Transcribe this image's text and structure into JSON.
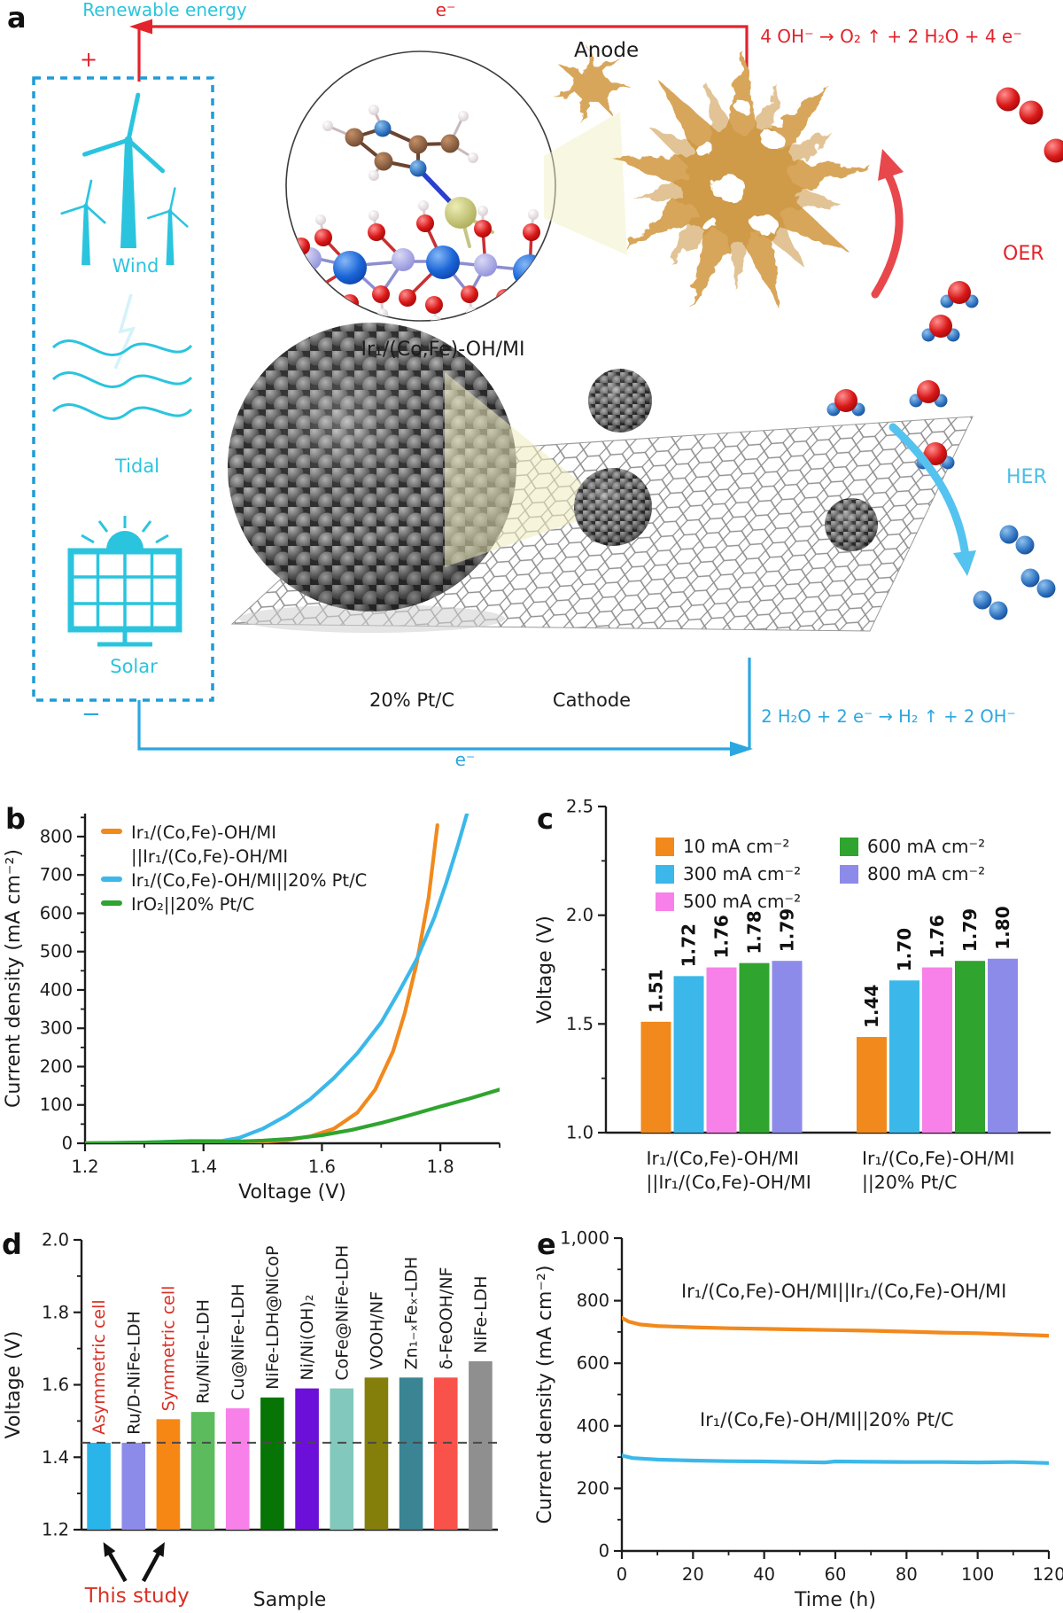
{
  "panel_a": {
    "label": "a",
    "renewable_energy": "Renewable energy",
    "electron_top": "e⁻",
    "plus_sign": "+",
    "minus_sign": "−",
    "wind_label": "Wind",
    "tidal_label": "Tidal",
    "solar_label": "Solar",
    "anode_label": "Anode",
    "anode_reaction": "4 OH⁻ → O₂ ↑ + 2 H₂O + 4 e⁻",
    "oer_label": "OER",
    "catalyst_label": "Ir₁/(Co,Fe)-OH/MI",
    "cathode_catalyst_label": "20% Pt/C",
    "cathode_label": "Cathode",
    "cathode_reaction": "2 H₂O + 2 e⁻ → H₂ ↑ + 2 OH⁻",
    "her_label": "HER",
    "electron_bottom": "e⁻"
  },
  "panel_labels": {
    "b": "b",
    "c": "c",
    "d": "d",
    "e": "e"
  },
  "colors": {
    "cyan": "#2BC4DE",
    "red": "#E3232B",
    "wire_blue": "#2BA7E0",
    "box_blue": "#1E9CD7",
    "arrow_red": "#E8474C",
    "arrow_blue": "#54C3EF",
    "her_blue": "#4BBEE8",
    "study_red": "#D93025",
    "orange": "#F1891D",
    "sky": "#3BB8E9",
    "green": "#2FA42F",
    "magenta": "#F781E8",
    "periwinkle": "#8D8BEA",
    "tan": "#D8A65A",
    "text": "#1C1C1C"
  },
  "chart_data": [
    {
      "id": "b",
      "type": "line",
      "xlabel": "Voltage (V)",
      "ylabel": "Current density (mA cm⁻²)",
      "xlim": [
        1.2,
        1.9
      ],
      "ylim": [
        0,
        860
      ],
      "xticks": [
        1.2,
        1.4,
        1.6,
        1.8
      ],
      "xtick_labels": [
        "1.2",
        "1.4",
        "1.6",
        "1.8"
      ],
      "xminor": [
        1.3,
        1.5,
        1.7,
        1.9
      ],
      "yticks": [
        0,
        100,
        200,
        300,
        400,
        500,
        600,
        700,
        800
      ],
      "ytick_labels": [
        "0",
        "100",
        "200",
        "300",
        "400",
        "500",
        "600",
        "700",
        "800"
      ],
      "yminor": [
        50,
        150,
        250,
        350,
        450,
        550,
        650,
        750,
        850
      ],
      "legend_position": "top-left",
      "series": [
        {
          "name": "Ir₁/(Co,Fe)-OH/MI",
          "name2": "||Ir₁/(Co,Fe)-OH/MI",
          "color": "#F1891D",
          "points": [
            [
              1.2,
              0
            ],
            [
              1.3,
              0
            ],
            [
              1.4,
              1
            ],
            [
              1.45,
              2
            ],
            [
              1.5,
              4
            ],
            [
              1.54,
              8
            ],
            [
              1.58,
              18
            ],
            [
              1.62,
              38
            ],
            [
              1.66,
              80
            ],
            [
              1.69,
              140
            ],
            [
              1.72,
              240
            ],
            [
              1.74,
              340
            ],
            [
              1.76,
              470
            ],
            [
              1.78,
              640
            ],
            [
              1.795,
              830
            ]
          ]
        },
        {
          "name": "Ir₁/(Co,Fe)-OH/MI||20% Pt/C",
          "color": "#3BB8E9",
          "points": [
            [
              1.2,
              0
            ],
            [
              1.3,
              2
            ],
            [
              1.38,
              6
            ],
            [
              1.43,
              6
            ],
            [
              1.46,
              14
            ],
            [
              1.5,
              38
            ],
            [
              1.54,
              72
            ],
            [
              1.58,
              115
            ],
            [
              1.62,
              170
            ],
            [
              1.66,
              235
            ],
            [
              1.7,
              315
            ],
            [
              1.73,
              395
            ],
            [
              1.76,
              480
            ],
            [
              1.79,
              590
            ],
            [
              1.81,
              680
            ],
            [
              1.83,
              780
            ],
            [
              1.845,
              860
            ]
          ]
        },
        {
          "name": "IrO₂||20% Pt/C",
          "color": "#2FA42F",
          "points": [
            [
              1.2,
              0
            ],
            [
              1.3,
              2
            ],
            [
              1.38,
              5
            ],
            [
              1.44,
              4
            ],
            [
              1.5,
              7
            ],
            [
              1.55,
              12
            ],
            [
              1.6,
              21
            ],
            [
              1.65,
              35
            ],
            [
              1.7,
              53
            ],
            [
              1.75,
              74
            ],
            [
              1.8,
              96
            ],
            [
              1.85,
              117
            ],
            [
              1.9,
              140
            ]
          ]
        }
      ]
    },
    {
      "id": "c",
      "type": "grouped_bar",
      "ylabel": "Voltage (V)",
      "ylim": [
        1.0,
        2.5
      ],
      "yticks": [
        1.0,
        1.5,
        2.0,
        2.5
      ],
      "ytick_labels": [
        "1.0",
        "1.5",
        "2.0",
        "2.5"
      ],
      "yminor": [
        1.25,
        1.75,
        2.25
      ],
      "categories": [
        [
          "Ir₁/(Co,Fe)-OH/MI",
          "||Ir₁/(Co,Fe)-OH/MI"
        ],
        [
          "Ir₁/(Co,Fe)-OH/MI",
          "||20% Pt/C"
        ]
      ],
      "series": [
        {
          "name": "10 mA cm⁻²",
          "color": "#F1891D",
          "values": [
            1.51,
            1.44
          ],
          "labels": [
            "1.51",
            "1.44"
          ]
        },
        {
          "name": "300 mA cm⁻²",
          "color": "#3BB8E9",
          "values": [
            1.72,
            1.7
          ],
          "labels": [
            "1.72",
            "1.70"
          ]
        },
        {
          "name": "500 mA cm⁻²",
          "color": "#F781E8",
          "values": [
            1.76,
            1.76
          ],
          "labels": [
            "1.76",
            "1.76"
          ]
        },
        {
          "name": "600 mA cm⁻²",
          "color": "#2FA42F",
          "values": [
            1.78,
            1.79
          ],
          "labels": [
            "1.78",
            "1.79"
          ]
        },
        {
          "name": "800 mA cm⁻²",
          "color": "#8D8BEA",
          "values": [
            1.79,
            1.8
          ],
          "labels": [
            "1.79",
            "1.80"
          ]
        }
      ],
      "legend_columns": [
        [
          0,
          1,
          2
        ],
        [
          3,
          4
        ]
      ]
    },
    {
      "id": "d",
      "type": "bar",
      "xlabel": "Sample",
      "ylabel": "Voltage (V)",
      "ylim": [
        1.2,
        2.0
      ],
      "yticks": [
        1.2,
        1.4,
        1.6,
        1.8,
        2.0
      ],
      "ytick_labels": [
        "1.2",
        "1.4",
        "1.6",
        "1.8",
        "2.0"
      ],
      "yminor": [
        1.3,
        1.5,
        1.7,
        1.9
      ],
      "ref_line": 1.44,
      "bars": [
        {
          "label": "Asymmetric cell",
          "value": 1.44,
          "color": "#29B4EA",
          "label_color": "#D93025"
        },
        {
          "label": "Ru/D-NiFe-LDH",
          "value": 1.44,
          "color": "#8D8BEA"
        },
        {
          "label": "Symmetric cell",
          "value": 1.505,
          "color": "#F78715",
          "label_color": "#D93025"
        },
        {
          "label": "Ru/NiFe-LDH",
          "value": 1.525,
          "color": "#5CBB5C"
        },
        {
          "label": "Cu@NiFe-LDH",
          "value": 1.535,
          "color": "#F781E8"
        },
        {
          "label": "NiFe-LDH@NiCoP",
          "value": 1.565,
          "color": "#067506"
        },
        {
          "label": "Ni/Ni(OH)₂",
          "value": 1.59,
          "color": "#6B0FD9"
        },
        {
          "label": "CoFe@NiFe-LDH",
          "value": 1.59,
          "color": "#82C8BC"
        },
        {
          "label": "VOOH/NF",
          "value": 1.62,
          "color": "#847F0A"
        },
        {
          "label": "Zn₁₋ₓFeₓ-LDH",
          "value": 1.62,
          "color": "#3A8494"
        },
        {
          "label": "δ-FeOOH/NF",
          "value": 1.62,
          "color": "#F9524B"
        },
        {
          "label": "NiFe-LDH",
          "value": 1.665,
          "color": "#8F8F8F"
        }
      ],
      "annotation": {
        "text": "This study",
        "color": "#D93025",
        "targets": [
          0,
          2
        ]
      }
    },
    {
      "id": "e",
      "type": "line",
      "xlabel": "Time (h)",
      "ylabel": "Current density (mA cm⁻²)",
      "xlim": [
        0,
        120
      ],
      "ylim": [
        0,
        1000
      ],
      "xticks": [
        0,
        20,
        40,
        60,
        80,
        100,
        120
      ],
      "xtick_labels": [
        "0",
        "20",
        "40",
        "60",
        "80",
        "100",
        "120"
      ],
      "xminor": [
        10,
        30,
        50,
        70,
        90,
        110
      ],
      "yticks": [
        0,
        200,
        400,
        600,
        800,
        1000
      ],
      "ytick_labels": [
        "0",
        "200",
        "400",
        "600",
        "800",
        "1,000"
      ],
      "yminor": [
        100,
        300,
        500,
        700,
        900
      ],
      "series": [
        {
          "name": "Ir₁/(Co,Fe)-OH/MI||Ir₁/(Co,Fe)-OH/MI",
          "color": "#F1891D",
          "label_pos": [
            0.52,
            0.81
          ],
          "points": [
            [
              0,
              745
            ],
            [
              2,
              733
            ],
            [
              5,
              724
            ],
            [
              10,
              719
            ],
            [
              20,
              715
            ],
            [
              30,
              712
            ],
            [
              40,
              710
            ],
            [
              50,
              708
            ],
            [
              60,
              706
            ],
            [
              70,
              704
            ],
            [
              80,
              701
            ],
            [
              90,
              698
            ],
            [
              100,
              696
            ],
            [
              110,
              692
            ],
            [
              120,
              688
            ]
          ]
        },
        {
          "name": "Ir₁/(Co,Fe)-OH/MI||20% Pt/C",
          "color": "#3BB8E9",
          "label_pos": [
            0.48,
            0.4
          ],
          "points": [
            [
              0,
              305
            ],
            [
              3,
              297
            ],
            [
              10,
              292
            ],
            [
              20,
              289
            ],
            [
              30,
              287
            ],
            [
              40,
              286
            ],
            [
              50,
              284
            ],
            [
              57,
              283
            ],
            [
              60,
              286
            ],
            [
              70,
              285
            ],
            [
              80,
              284
            ],
            [
              90,
              284
            ],
            [
              100,
              283
            ],
            [
              110,
              284
            ],
            [
              120,
              281
            ]
          ]
        }
      ]
    }
  ]
}
